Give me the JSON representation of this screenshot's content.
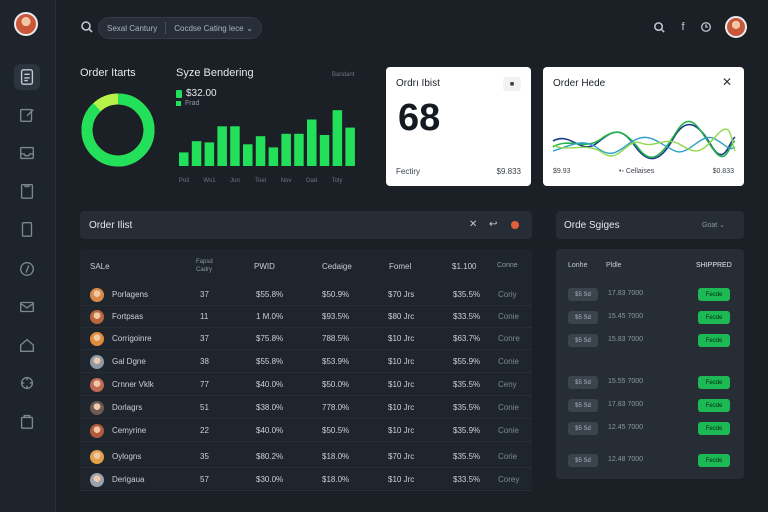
{
  "topbar": {
    "search_left": "Sexal Cantury",
    "search_right": "Cocdse Cating lece",
    "icons": [
      "search-icon",
      "facebook-icon",
      "clock-icon",
      "avatar"
    ]
  },
  "sidebar": {
    "icons": [
      "document-icon",
      "edit-icon",
      "inbox-icon",
      "clipboard-icon",
      "file-icon",
      "compass-icon",
      "mail-icon",
      "home-icon",
      "settings-icon",
      "bag-icon"
    ]
  },
  "overview": {
    "order_stats_title": "Order Itarts",
    "sales_title": "Syze Bendering",
    "sales_value": "$32.00",
    "sales_sub": "Frad",
    "mini_label": "Bandant",
    "donut_percent": 88,
    "bars": [
      22,
      40,
      38,
      64,
      64,
      35,
      48,
      30,
      52,
      52,
      75,
      50,
      90,
      62
    ],
    "bar_labels": [
      "Poil",
      "Wo1",
      "Jun",
      "Toel",
      "Nov",
      "Oad",
      "Toly"
    ]
  },
  "card_count": {
    "title": "Ordrı Ibist",
    "value": "68",
    "foot_left": "Fectiry",
    "foot_right": "$9.833"
  },
  "card_trend": {
    "title": "Order Hede",
    "foot_left": "$9.93",
    "foot_mid": "•◦ Cellaises",
    "foot_right": "$0.833"
  },
  "order_list": {
    "title": "Order Ilist",
    "headers": {
      "sale": "SALe",
      "small": "Fapsd Cadry",
      "paid": "PWID",
      "category": "Cedaige",
      "fomel": "Fomel",
      "total": "$1.100",
      "col": "Conne"
    },
    "rows": [
      {
        "name": "Porlagens",
        "qty": "37",
        "pct": "$55.8%",
        "sum": "$50.9%",
        "price": "$70 Jrs",
        "total": "$35.5%",
        "status": "Coriy",
        "avatar": "#d98a4a"
      },
      {
        "name": "Fortpsas",
        "qty": "11",
        "pct": "1 M.0%",
        "sum": "$93.5%",
        "price": "$80 Jrc",
        "total": "$33.5%",
        "status": "Conie",
        "avatar": "#b8673e"
      },
      {
        "name": "Corrigoinre",
        "qty": "37",
        "pct": "$75.8%",
        "sum": "788.5%",
        "price": "$10 Jrc",
        "total": "$63.7%",
        "status": "Conre",
        "avatar": "#e08c3b"
      },
      {
        "name": "Gal Dgne",
        "qty": "38",
        "pct": "$55.8%",
        "sum": "$53.9%",
        "price": "$10 Jrc",
        "total": "$55.9%",
        "status": "Conie",
        "avatar": "#8e9aa6"
      },
      {
        "name": "Crnner Vklk",
        "qty": "77",
        "pct": "$40.0%",
        "sum": "$50.0%",
        "price": "$10 Jrc",
        "total": "$35.5%",
        "status": "Ceny",
        "avatar": "#c06a55"
      },
      {
        "name": "Dorlagrs",
        "qty": "51",
        "pct": "$38.0%",
        "sum": "778.0%",
        "price": "$10 Jrc",
        "total": "$35.5%",
        "status": "Conie",
        "avatar": "#6e5a52"
      },
      {
        "name": "Cemyrine",
        "qty": "22",
        "pct": "$40.0%",
        "sum": "$50.5%",
        "price": "$10 Jrc",
        "total": "$35.9%",
        "status": "Conie",
        "avatar": "#b25a3e"
      },
      {
        "name": "Oylogns",
        "qty": "35",
        "pct": "$80.2%",
        "sum": "$18.0%",
        "price": "$70 Jrc",
        "total": "$35.5%",
        "status": "Corie",
        "avatar": "#e3a04a"
      },
      {
        "name": "Derigaua",
        "qty": "57",
        "pct": "$30.0%",
        "sum": "$18.0%",
        "price": "$10 Jrc",
        "total": "$33.5%",
        "status": "Corey",
        "avatar": "#9aa3ad"
      }
    ]
  },
  "order_status": {
    "title": "Orde Sgiges",
    "dropdown": "Goat",
    "headers": {
      "left": "Lonhe",
      "mid": "Pldle",
      "right": "SHIPPRED"
    },
    "rows": [
      {
        "chip": "$5 Sd",
        "mid": "17.83 7000",
        "badge": "Fecde"
      },
      {
        "chip": "$5 Sd",
        "mid": "15.45 7000",
        "badge": "Fecde"
      },
      {
        "chip": "$5 Sd",
        "mid": "15.83 7000",
        "badge": "Fecde"
      },
      {
        "chip": "$5 Sd",
        "mid": "15.55 7000",
        "badge": "Fecde"
      },
      {
        "chip": "$5 Sd",
        "mid": "17.83 7000",
        "badge": "Fecde"
      },
      {
        "chip": "$5 Sd",
        "mid": "12.45 7000",
        "badge": "Fecde"
      },
      {
        "chip": "$5 Sd",
        "mid": "12.48 7000",
        "badge": "Fecde"
      }
    ]
  },
  "colors": {
    "accent": "#22e05a",
    "lime": "#b7f24a",
    "background": "#1b2026",
    "panel": "#1f252c"
  }
}
